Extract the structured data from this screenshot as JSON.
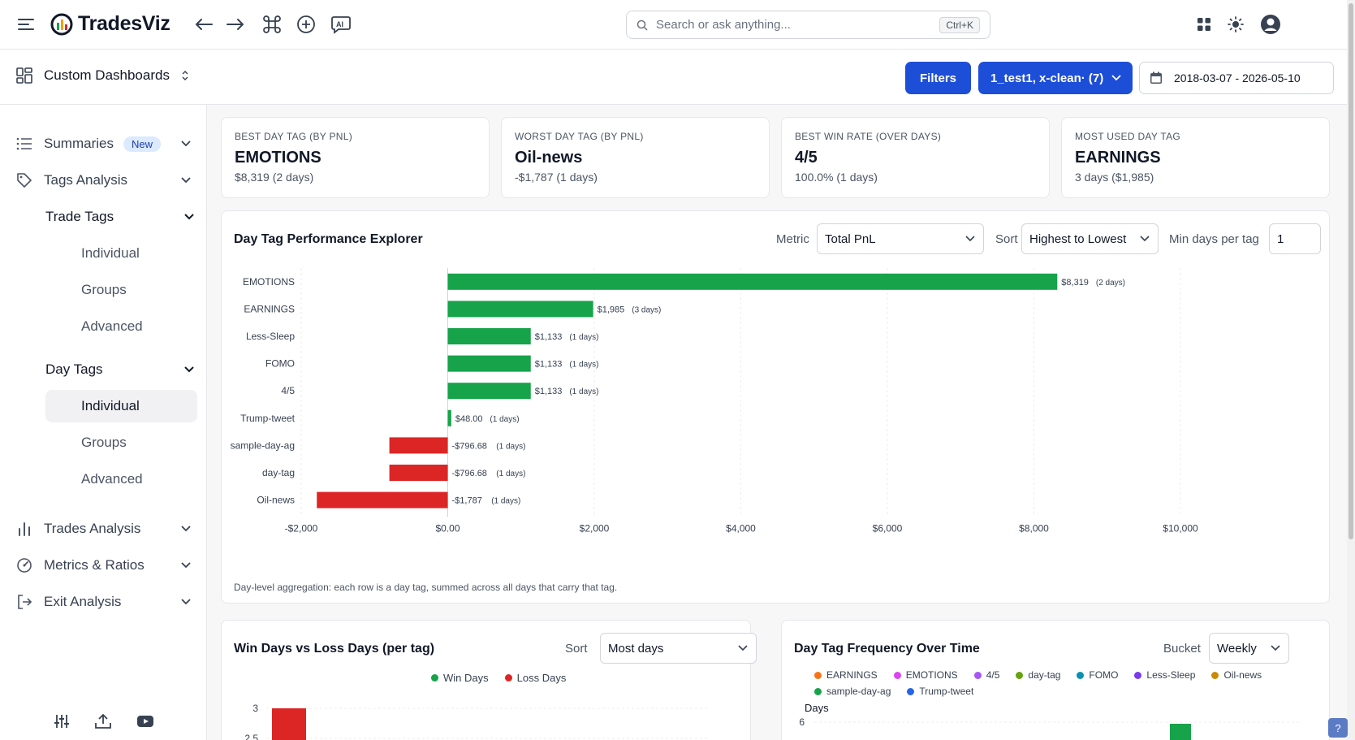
{
  "app": {
    "name": "TradesViz"
  },
  "search": {
    "placeholder": "Search or ask anything...",
    "shortcut": "Ctrl+K"
  },
  "subbar": {
    "dashboard_label": "Custom Dashboards",
    "filters_label": "Filters",
    "account_label": "1_test1, x-clean· (7)",
    "date_range": "2018-03-07 - 2026-05-10"
  },
  "sidebar": {
    "summaries": "Summaries",
    "summaries_badge": "New",
    "tags_analysis": "Tags Analysis",
    "trade_tags": "Trade Tags",
    "trade_tags_items": [
      "Individual",
      "Groups",
      "Advanced"
    ],
    "day_tags": "Day Tags",
    "day_tags_items": [
      "Individual",
      "Groups",
      "Advanced"
    ],
    "trades_analysis": "Trades Analysis",
    "metrics_ratios": "Metrics & Ratios",
    "exit_analysis": "Exit Analysis"
  },
  "kpis": [
    {
      "header": "BEST DAY TAG (BY PNL)",
      "value": "EMOTIONS",
      "sub": "$8,319 (2 days)"
    },
    {
      "header": "WORST DAY TAG (BY PNL)",
      "value": "Oil-news",
      "sub": "-$1,787 (1 days)"
    },
    {
      "header": "BEST WIN RATE (OVER DAYS)",
      "value": "4/5",
      "sub": "100.0% (1 days)"
    },
    {
      "header": "MOST USED DAY TAG",
      "value": "EARNINGS",
      "sub": "3 days ($1,985)"
    }
  ],
  "explorer": {
    "title": "Day Tag Performance Explorer",
    "metric_label": "Metric",
    "metric_value": "Total PnL",
    "sort_label": "Sort",
    "sort_value": "Highest to Lowest",
    "min_days_label": "Min days per tag",
    "min_days_value": "1",
    "footnote": "Day-level aggregation: each row is a day tag, summed across all days that carry that tag."
  },
  "win_loss": {
    "title": "Win Days vs Loss Days (per tag)",
    "sort_label": "Sort",
    "sort_value": "Most days",
    "legend": [
      "Win Days",
      "Loss Days"
    ]
  },
  "frequency": {
    "title": "Day Tag Frequency Over Time",
    "bucket_label": "Bucket",
    "bucket_value": "Weekly",
    "legend": [
      {
        "name": "EARNINGS",
        "color": "#f97316"
      },
      {
        "name": "EMOTIONS",
        "color": "#d946ef"
      },
      {
        "name": "4/5",
        "color": "#a855f7"
      },
      {
        "name": "day-tag",
        "color": "#65a30d"
      },
      {
        "name": "FOMO",
        "color": "#0891b2"
      },
      {
        "name": "Less-Sleep",
        "color": "#7c3aed"
      },
      {
        "name": "Oil-news",
        "color": "#ca8a04"
      },
      {
        "name": "sample-day-ag",
        "color": "#16a34a"
      },
      {
        "name": "Trump-tweet",
        "color": "#2563eb"
      }
    ],
    "y_label": "Days"
  },
  "colors": {
    "positive": "#16a34a",
    "negative": "#dc2626",
    "accent": "#1d4ed8"
  },
  "chart_data": [
    {
      "type": "bar",
      "orientation": "horizontal",
      "categories": [
        "EMOTIONS",
        "EARNINGS",
        "Less-Sleep",
        "FOMO",
        "4/5",
        "Trump-tweet",
        "sample-day-ag",
        "day-tag",
        "Oil-news"
      ],
      "values": [
        8319,
        1985,
        1133,
        1133,
        1133,
        48,
        -796.68,
        -796.68,
        -1787
      ],
      "labels": [
        "$8,319",
        "$1,985",
        "$1,133",
        "$1,133",
        "$1,133",
        "$48.00",
        "-$796.68",
        "-$796.68",
        "-$1,787"
      ],
      "days": [
        "(2 days)",
        "(3 days)",
        "(1 days)",
        "(1 days)",
        "(1 days)",
        "(1 days)",
        "(1 days)",
        "(1 days)",
        "(1 days)"
      ],
      "xlim": [
        -2000,
        10000
      ],
      "xticks": [
        -2000,
        0,
        2000,
        4000,
        6000,
        8000,
        10000
      ],
      "xtick_labels": [
        "-$2,000",
        "$0.00",
        "$2,000",
        "$4,000",
        "$6,000",
        "$8,000",
        "$10,000"
      ],
      "grid": true
    },
    {
      "type": "bar",
      "series": [
        {
          "name": "Win Days",
          "values": []
        },
        {
          "name": "Loss Days",
          "values": [
            3
          ]
        }
      ],
      "yticks": [
        "3",
        "2.5"
      ],
      "legend": "top-center"
    },
    {
      "type": "bar",
      "ylabel": "Days",
      "yticks": [
        "6"
      ],
      "legend": "top"
    }
  ]
}
